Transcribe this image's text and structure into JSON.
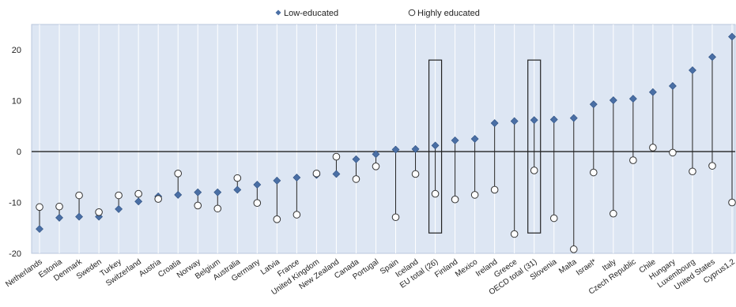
{
  "chart_data": {
    "type": "scatter",
    "title": "",
    "xlabel": "",
    "ylabel": "",
    "ylim": [
      -20,
      25
    ],
    "yticks": [
      -20,
      -10,
      0,
      10,
      20
    ],
    "grid": "vertical",
    "legend_position": "top-center",
    "categories": [
      "Netherlands",
      "Estonia",
      "Denmark",
      "Sweden",
      "Turkey",
      "Switzerland",
      "Austria",
      "Croatia",
      "Norway",
      "Belgium",
      "Australia",
      "Germany",
      "Latvia",
      "France",
      "United Kingdom",
      "New Zealand",
      "Canada",
      "Portugal",
      "Spain",
      "Iceland",
      "EU total (26)",
      "Finland",
      "Mexico",
      "Ireland",
      "Greece",
      "OECD total (31)",
      "Slovenia",
      "Malta",
      "Israel*",
      "Italy",
      "Czech Republic",
      "Chile",
      "Hungary",
      "Luxembourg",
      "United States",
      "Cyprus1,2"
    ],
    "highlighted": [
      "EU total (26)",
      "OECD total (31)"
    ],
    "series": [
      {
        "name": "Low-educated",
        "marker": "diamond",
        "color": "#4a6fa5",
        "values": [
          -15.2,
          -13.0,
          -12.8,
          -12.8,
          -11.3,
          -9.8,
          -8.8,
          -8.5,
          -8.0,
          -8.0,
          -7.5,
          -6.5,
          -5.7,
          -5.1,
          -4.6,
          -4.4,
          -1.5,
          -0.5,
          0.4,
          0.5,
          1.2,
          2.2,
          2.5,
          5.6,
          6.0,
          6.2,
          6.3,
          6.6,
          9.3,
          10.1,
          10.4,
          11.7,
          12.9,
          16.0,
          18.6,
          22.6
        ]
      },
      {
        "name": "Highly educated",
        "marker": "circle-open",
        "color": "#333333",
        "values": [
          -10.9,
          -10.8,
          -8.6,
          -11.9,
          -8.6,
          -8.3,
          -9.3,
          -4.3,
          -10.6,
          -11.2,
          -5.2,
          -10.1,
          -13.3,
          -12.4,
          -4.3,
          -1.0,
          -5.4,
          -2.9,
          -12.9,
          -4.4,
          -8.3,
          -9.4,
          -8.5,
          -7.5,
          -16.2,
          -3.7,
          -13.1,
          -19.2,
          -4.1,
          -12.2,
          -1.7,
          0.8,
          -0.2,
          -3.9,
          -2.8,
          -10.0
        ]
      }
    ]
  }
}
